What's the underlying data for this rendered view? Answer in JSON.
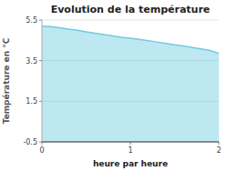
{
  "chart_data": {
    "type": "area",
    "title": "Evolution de la température",
    "x_label": "heure par heure",
    "y_label": "Température en °C",
    "x": [
      0,
      0.1,
      0.2,
      0.3,
      0.4,
      0.5,
      0.6,
      0.7,
      0.8,
      0.9,
      1.0,
      1.1,
      1.2,
      1.3,
      1.4,
      1.5,
      1.6,
      1.7,
      1.8,
      1.9,
      2.0
    ],
    "values": [
      5.2,
      5.18,
      5.12,
      5.05,
      5.0,
      4.92,
      4.85,
      4.78,
      4.72,
      4.65,
      4.6,
      4.55,
      4.48,
      4.42,
      4.35,
      4.28,
      4.22,
      4.15,
      4.08,
      4.0,
      3.85
    ],
    "color": "#6ecce0",
    "xlim": [
      0,
      2
    ],
    "ylim": [
      -0.5,
      5.5
    ],
    "xticks": [
      0,
      1,
      2
    ],
    "yticks": [
      -0.5,
      1.5,
      3.5,
      5.5
    ],
    "grid": true
  }
}
